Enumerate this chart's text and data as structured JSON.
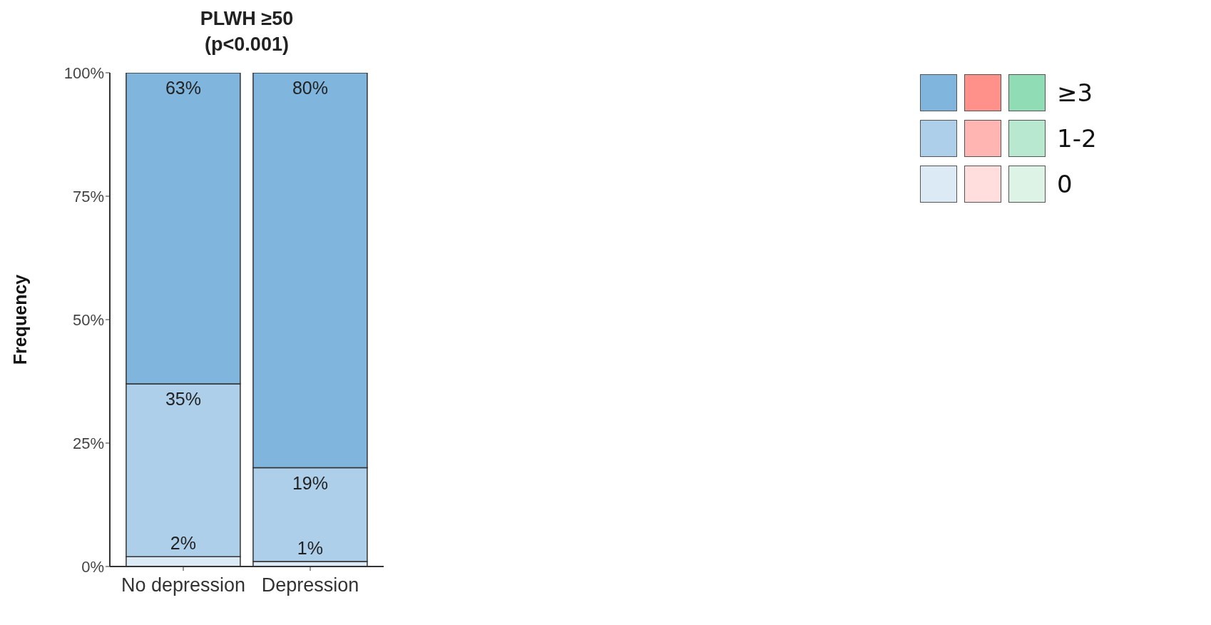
{
  "chart_data": {
    "type": "bar",
    "title": "PLWH ≥50",
    "subtitle": "(p<0.001)",
    "ylabel": "Frequency",
    "categories": [
      "No depression",
      "Depression"
    ],
    "stacked": true,
    "series": [
      {
        "name": "0",
        "color": "#dbeaf5",
        "values": [
          2,
          1
        ],
        "value_labels": [
          "2%",
          "1%"
        ]
      },
      {
        "name": "1-2",
        "color": "#aecfea",
        "values": [
          35,
          19
        ],
        "value_labels": [
          "35%",
          "19%"
        ]
      },
      {
        "name": "≥3",
        "color": "#80b5dd",
        "values": [
          63,
          80
        ],
        "value_labels": [
          "63%",
          "80%"
        ]
      }
    ],
    "ylim": [
      0,
      100
    ],
    "yticks": [
      {
        "value": 0,
        "label": "0%"
      },
      {
        "value": 25,
        "label": "25%"
      },
      {
        "value": 50,
        "label": "50%"
      },
      {
        "value": 75,
        "label": "75%"
      },
      {
        "value": 100,
        "label": "100%"
      }
    ],
    "legend": "top right"
  }
}
